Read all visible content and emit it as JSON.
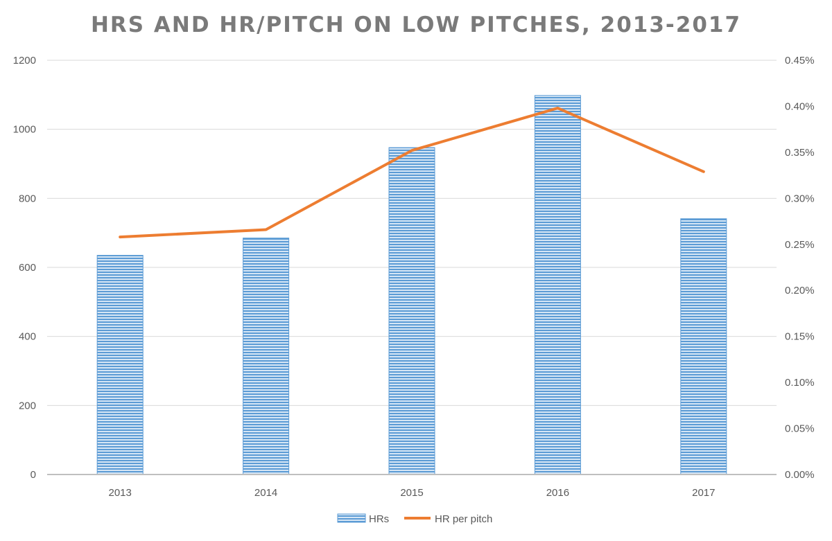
{
  "chart_data": {
    "type": "bar",
    "title": "HRS AND HR/PITCH ON LOW PITCHES, 2013-2017",
    "categories": [
      "2013",
      "2014",
      "2015",
      "2016",
      "2017"
    ],
    "series": [
      {
        "name": "HRs",
        "type": "bar",
        "axis": "left",
        "values": [
          635,
          685,
          947,
          1098,
          741
        ]
      },
      {
        "name": "HR per pitch",
        "type": "line",
        "axis": "right",
        "values": [
          0.00258,
          0.00266,
          0.00352,
          0.00398,
          0.00329
        ]
      }
    ],
    "y_left": {
      "lim": [
        0,
        1200
      ],
      "ticks": [
        "0",
        "200",
        "400",
        "600",
        "800",
        "1000",
        "1200"
      ]
    },
    "y_right": {
      "lim": [
        0,
        0.0045
      ],
      "ticks": [
        "0.00%",
        "0.05%",
        "0.10%",
        "0.15%",
        "0.20%",
        "0.25%",
        "0.30%",
        "0.35%",
        "0.40%",
        "0.45%"
      ]
    },
    "grid": true,
    "legend": "bottom",
    "colors": {
      "bar": "#5b9bd5",
      "bar_stripe": "#d6e6f5",
      "line": "#ed7d31",
      "grid": "#d9d9d9",
      "axis": "#bfbfbf",
      "text": "#595959",
      "title": "#7a7a7a"
    }
  }
}
